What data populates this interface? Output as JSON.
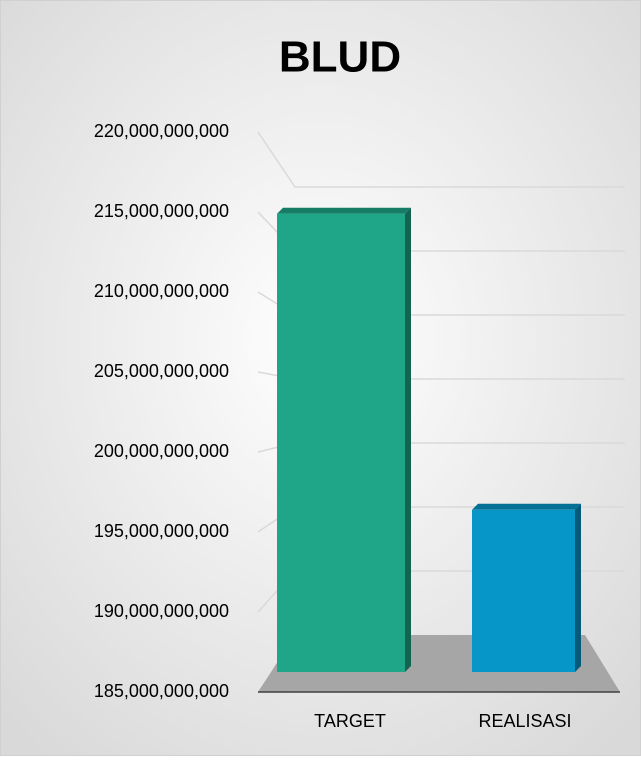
{
  "chart_data": {
    "type": "bar3d",
    "title": "BLUD",
    "categories": [
      "TARGET",
      "REALISASI"
    ],
    "series": [
      {
        "name": null,
        "colors": [
          "#1fa587",
          "#0796c8"
        ],
        "values": [
          215800000000,
          195900000000
        ]
      }
    ],
    "ylim": [
      185000000000,
      220000000000
    ],
    "yticks": [
      {
        "value": 185000000000,
        "label": "185,000,000,000"
      },
      {
        "value": 190000000000,
        "label": "190,000,000,000"
      },
      {
        "value": 195000000000,
        "label": "195,000,000,000"
      },
      {
        "value": 200000000000,
        "label": "200,000,000,000"
      },
      {
        "value": 205000000000,
        "label": "205,000,000,000"
      },
      {
        "value": 210000000000,
        "label": "210,000,000,000"
      },
      {
        "value": 215000000000,
        "label": "215,000,000,000"
      },
      {
        "value": 220000000000,
        "label": "220,000,000,000"
      }
    ],
    "grid": true
  }
}
